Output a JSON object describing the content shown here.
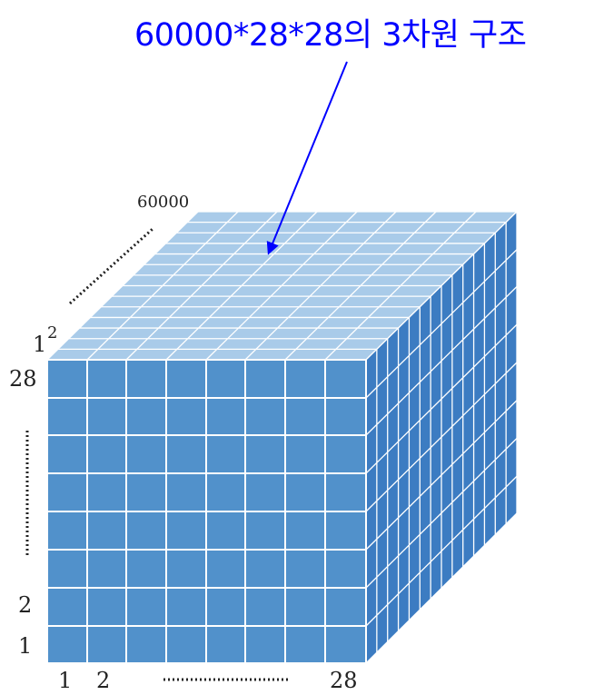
{
  "title": "60000*28*28의 3차원 구조",
  "labels": {
    "depth_start": "1",
    "depth_second": "2",
    "depth_end": "60000",
    "rows_top": "28",
    "rows_second": "2",
    "rows_first": "1",
    "cols_first": "1",
    "cols_second": "2",
    "cols_end": "28"
  },
  "colors": {
    "title": "#0000ff",
    "front_face": "#5191cb",
    "top_face": "#a9cbe9",
    "side_face": "#3c7cc2",
    "grid_line": "#ffffff",
    "arrow": "#0000ff"
  },
  "icons": {
    "arrow": "annotation-arrow-icon",
    "ellipsis": "dotted-ellipsis-icon"
  }
}
